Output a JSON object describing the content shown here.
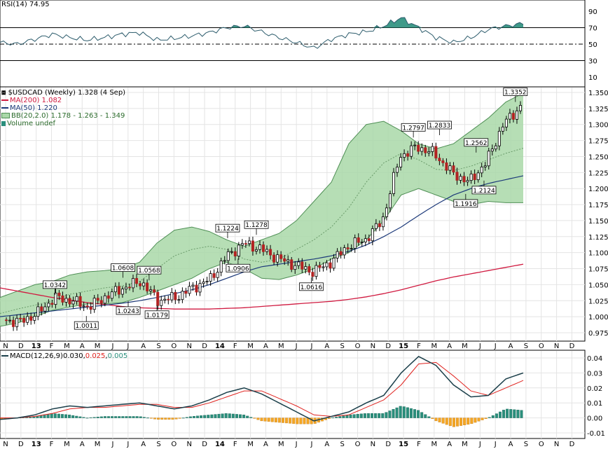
{
  "colors": {
    "rsi_line": "#2e5d6d",
    "rsi_fill": "#2a8f7c",
    "ma200": "#d01a40",
    "ma50": "#1d3a7a",
    "bb_fill": "#a9d8a8",
    "bb_edge": "#4f8f55",
    "bb_mid": "#6a9b6a",
    "candle_up": "#000000",
    "candle_down": "#b22222",
    "macd_line": "#1b3f4a",
    "signal_line": "#e0231f",
    "hist_pos": "#2a8f7c",
    "hist_neg": "#f5a623",
    "price_label_bg": "#ffffff"
  },
  "rsi": {
    "label": "RSI(14) 74.95",
    "axis_ticks": [
      "90",
      "70",
      "50",
      "30",
      "10"
    ]
  },
  "price": {
    "legend": [
      {
        "text": "$USDCAD (Weekly) 1.328 (4 Sep)",
        "icon": "candle-icon"
      },
      {
        "text": "MA(200) 1.082",
        "icon": "line-swatch-red"
      },
      {
        "text": "MA(50) 1.220",
        "icon": "line-swatch-navy"
      },
      {
        "text": "BB(20,2.0) 1.178 - 1.263 - 1.349",
        "icon": "band-swatch-green"
      },
      {
        "text": "Volume undef",
        "icon": "bar-swatch-green"
      }
    ],
    "axis_ticks": [
      "1.350",
      "1.325",
      "1.300",
      "1.275",
      "1.250",
      "1.225",
      "1.200",
      "1.175",
      "1.150",
      "1.125",
      "1.100",
      "1.075",
      "1.050",
      "1.025",
      "1.000",
      "0.975"
    ],
    "annotations": [
      "1.0342",
      "1.0011",
      "1.0608",
      "1.0243",
      "1.0568",
      "1.0179",
      "1.1224",
      "1.0906",
      "1.1278",
      "1.0616",
      "1.2797",
      "1.2833",
      "1.1916",
      "1.2562",
      "1.2124",
      "1.3352"
    ]
  },
  "macd": {
    "label_prefix": "MACD(12,26,9) ",
    "macd_value": "0.030",
    "separator": ", ",
    "signal_value": "0.025",
    "hist_value": "0.005",
    "axis_ticks": [
      "0.04",
      "0.03",
      "0.02",
      "0.01",
      "0.00",
      "-0.01"
    ]
  },
  "xaxis": {
    "labels": [
      "N",
      "D",
      "13",
      "F",
      "M",
      "A",
      "M",
      "J",
      "J",
      "A",
      "S",
      "O",
      "N",
      "D",
      "14",
      "F",
      "M",
      "A",
      "M",
      "J",
      "J",
      "A",
      "S",
      "O",
      "N",
      "D",
      "15",
      "F",
      "M",
      "A",
      "M",
      "J",
      "J",
      "A",
      "S",
      "O",
      "N",
      "D"
    ]
  },
  "chart_data": {
    "type": "line",
    "title": "$USDCAD (Weekly) 1.328 (4 Sep)",
    "x_start": "2012-11",
    "x_unit": "week",
    "ylim_price": [
      0.965,
      1.36
    ],
    "ylim_rsi": [
      0,
      100
    ],
    "ylim_macd": [
      -0.012,
      0.043
    ],
    "series": [
      {
        "name": "MA(200) 1.082",
        "values": [
          1.045,
          1.04,
          1.035,
          1.03,
          1.026,
          1.022,
          1.019,
          1.016,
          1.014,
          1.013,
          1.012,
          1.012,
          1.012,
          1.013,
          1.014,
          1.016,
          1.018,
          1.02,
          1.022,
          1.024,
          1.027,
          1.031,
          1.036,
          1.042,
          1.049,
          1.056,
          1.062,
          1.067,
          1.072,
          1.077,
          1.082
        ]
      },
      {
        "name": "MA(50) 1.220",
        "values": [
          1.0,
          1.003,
          1.006,
          1.009,
          1.012,
          1.015,
          1.018,
          1.021,
          1.025,
          1.03,
          1.036,
          1.042,
          1.05,
          1.06,
          1.07,
          1.078,
          1.082,
          1.086,
          1.09,
          1.095,
          1.102,
          1.112,
          1.125,
          1.14,
          1.158,
          1.175,
          1.19,
          1.2,
          1.208,
          1.214,
          1.22
        ]
      },
      {
        "name": "BB(20,2.0) 1.178 - 1.263 - 1.349",
        "upper": [
          1.03,
          1.04,
          1.05,
          1.055,
          1.065,
          1.07,
          1.072,
          1.075,
          1.085,
          1.115,
          1.135,
          1.14,
          1.133,
          1.12,
          1.11,
          1.12,
          1.13,
          1.15,
          1.18,
          1.21,
          1.27,
          1.3,
          1.305,
          1.29,
          1.27,
          1.262,
          1.27,
          1.29,
          1.31,
          1.335,
          1.349
        ],
        "middle": [
          1.005,
          1.012,
          1.018,
          1.025,
          1.035,
          1.04,
          1.045,
          1.048,
          1.055,
          1.075,
          1.095,
          1.105,
          1.11,
          1.105,
          1.09,
          1.085,
          1.09,
          1.105,
          1.12,
          1.14,
          1.17,
          1.21,
          1.24,
          1.255,
          1.245,
          1.23,
          1.228,
          1.235,
          1.245,
          1.255,
          1.263
        ],
        "lower": [
          0.985,
          0.99,
          1.0,
          1.01,
          1.015,
          1.02,
          1.02,
          1.022,
          1.03,
          1.04,
          1.05,
          1.06,
          1.075,
          1.085,
          1.075,
          1.06,
          1.058,
          1.065,
          1.075,
          1.09,
          1.1,
          1.12,
          1.15,
          1.19,
          1.2,
          1.19,
          1.18,
          1.175,
          1.18,
          1.178,
          1.178
        ]
      },
      {
        "name": "$USDCAD close",
        "values": [
          0.995,
          0.992,
          1.005,
          1.03,
          1.025,
          1.015,
          1.032,
          1.045,
          1.055,
          1.025,
          1.03,
          1.045,
          1.058,
          1.095,
          1.115,
          1.105,
          1.09,
          1.08,
          1.07,
          1.085,
          1.11,
          1.12,
          1.15,
          1.25,
          1.265,
          1.255,
          1.225,
          1.21,
          1.24,
          1.3,
          1.328
        ]
      },
      {
        "name": "RSI(14) 74.95",
        "values": [
          52,
          50,
          56,
          62,
          58,
          55,
          58,
          62,
          64,
          55,
          57,
          60,
          64,
          70,
          72,
          65,
          58,
          52,
          45,
          56,
          62,
          65,
          72,
          82,
          70,
          58,
          52,
          58,
          68,
          72,
          75
        ]
      },
      {
        "name": "MACD 0.030",
        "values": [
          -0.001,
          0.0,
          0.002,
          0.006,
          0.008,
          0.007,
          0.008,
          0.009,
          0.01,
          0.008,
          0.006,
          0.008,
          0.012,
          0.017,
          0.02,
          0.016,
          0.01,
          0.004,
          -0.002,
          0.001,
          0.004,
          0.01,
          0.015,
          0.03,
          0.041,
          0.035,
          0.022,
          0.014,
          0.015,
          0.026,
          0.03
        ]
      },
      {
        "name": "Signal 0.025",
        "values": [
          0.0,
          0.0,
          0.001,
          0.003,
          0.006,
          0.007,
          0.007,
          0.008,
          0.009,
          0.009,
          0.007,
          0.007,
          0.01,
          0.014,
          0.018,
          0.018,
          0.013,
          0.008,
          0.002,
          0.001,
          0.002,
          0.007,
          0.012,
          0.022,
          0.036,
          0.037,
          0.028,
          0.018,
          0.015,
          0.02,
          0.025
        ]
      }
    ]
  }
}
